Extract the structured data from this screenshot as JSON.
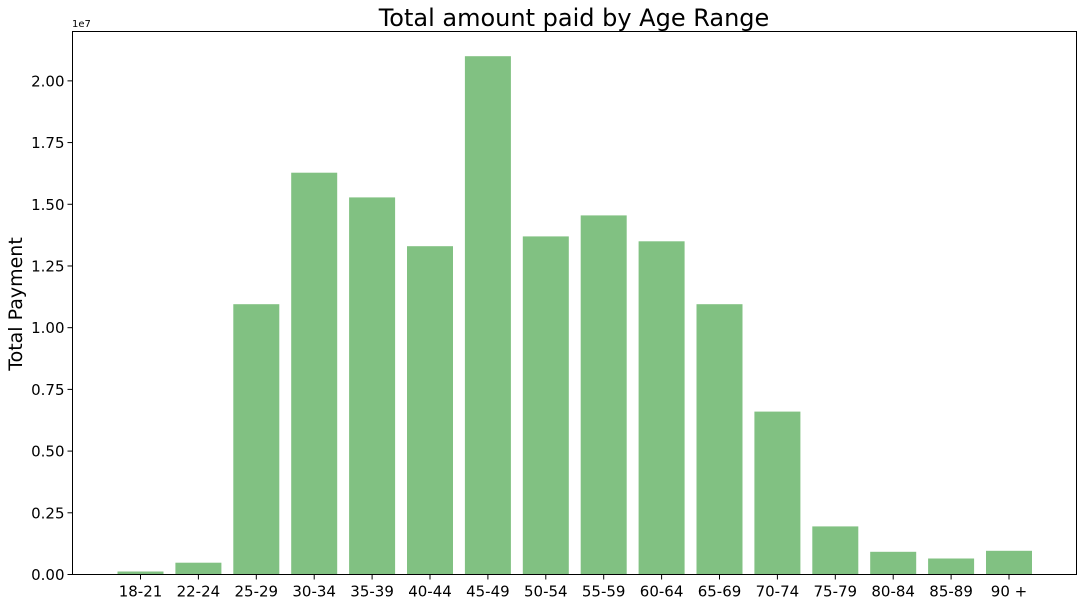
{
  "chart_data": {
    "type": "bar",
    "title": "Total amount paid by Age Range",
    "xlabel": "",
    "ylabel": "Total Payment",
    "y_offset_label": "1e7",
    "y_scale": 10000000,
    "categories": [
      "18-21",
      "22-24",
      "25-29",
      "30-34",
      "35-39",
      "40-44",
      "45-49",
      "50-54",
      "55-59",
      "60-64",
      "65-69",
      "70-74",
      "75-79",
      "80-84",
      "85-89",
      "90 +"
    ],
    "values": [
      120000,
      480000,
      10950000,
      16280000,
      15280000,
      13300000,
      21000000,
      13700000,
      14550000,
      13500000,
      10950000,
      6600000,
      1950000,
      920000,
      650000,
      960000
    ],
    "ylim": [
      0,
      22000000
    ],
    "yticks": [
      0,
      2500000,
      5000000,
      7500000,
      10000000,
      12500000,
      15000000,
      17500000,
      20000000
    ],
    "ytick_labels": [
      "0.00",
      "0.25",
      "0.50",
      "0.75",
      "1.00",
      "1.25",
      "1.50",
      "1.75",
      "2.00"
    ],
    "bar_color": "#81c182",
    "grid": false
  }
}
